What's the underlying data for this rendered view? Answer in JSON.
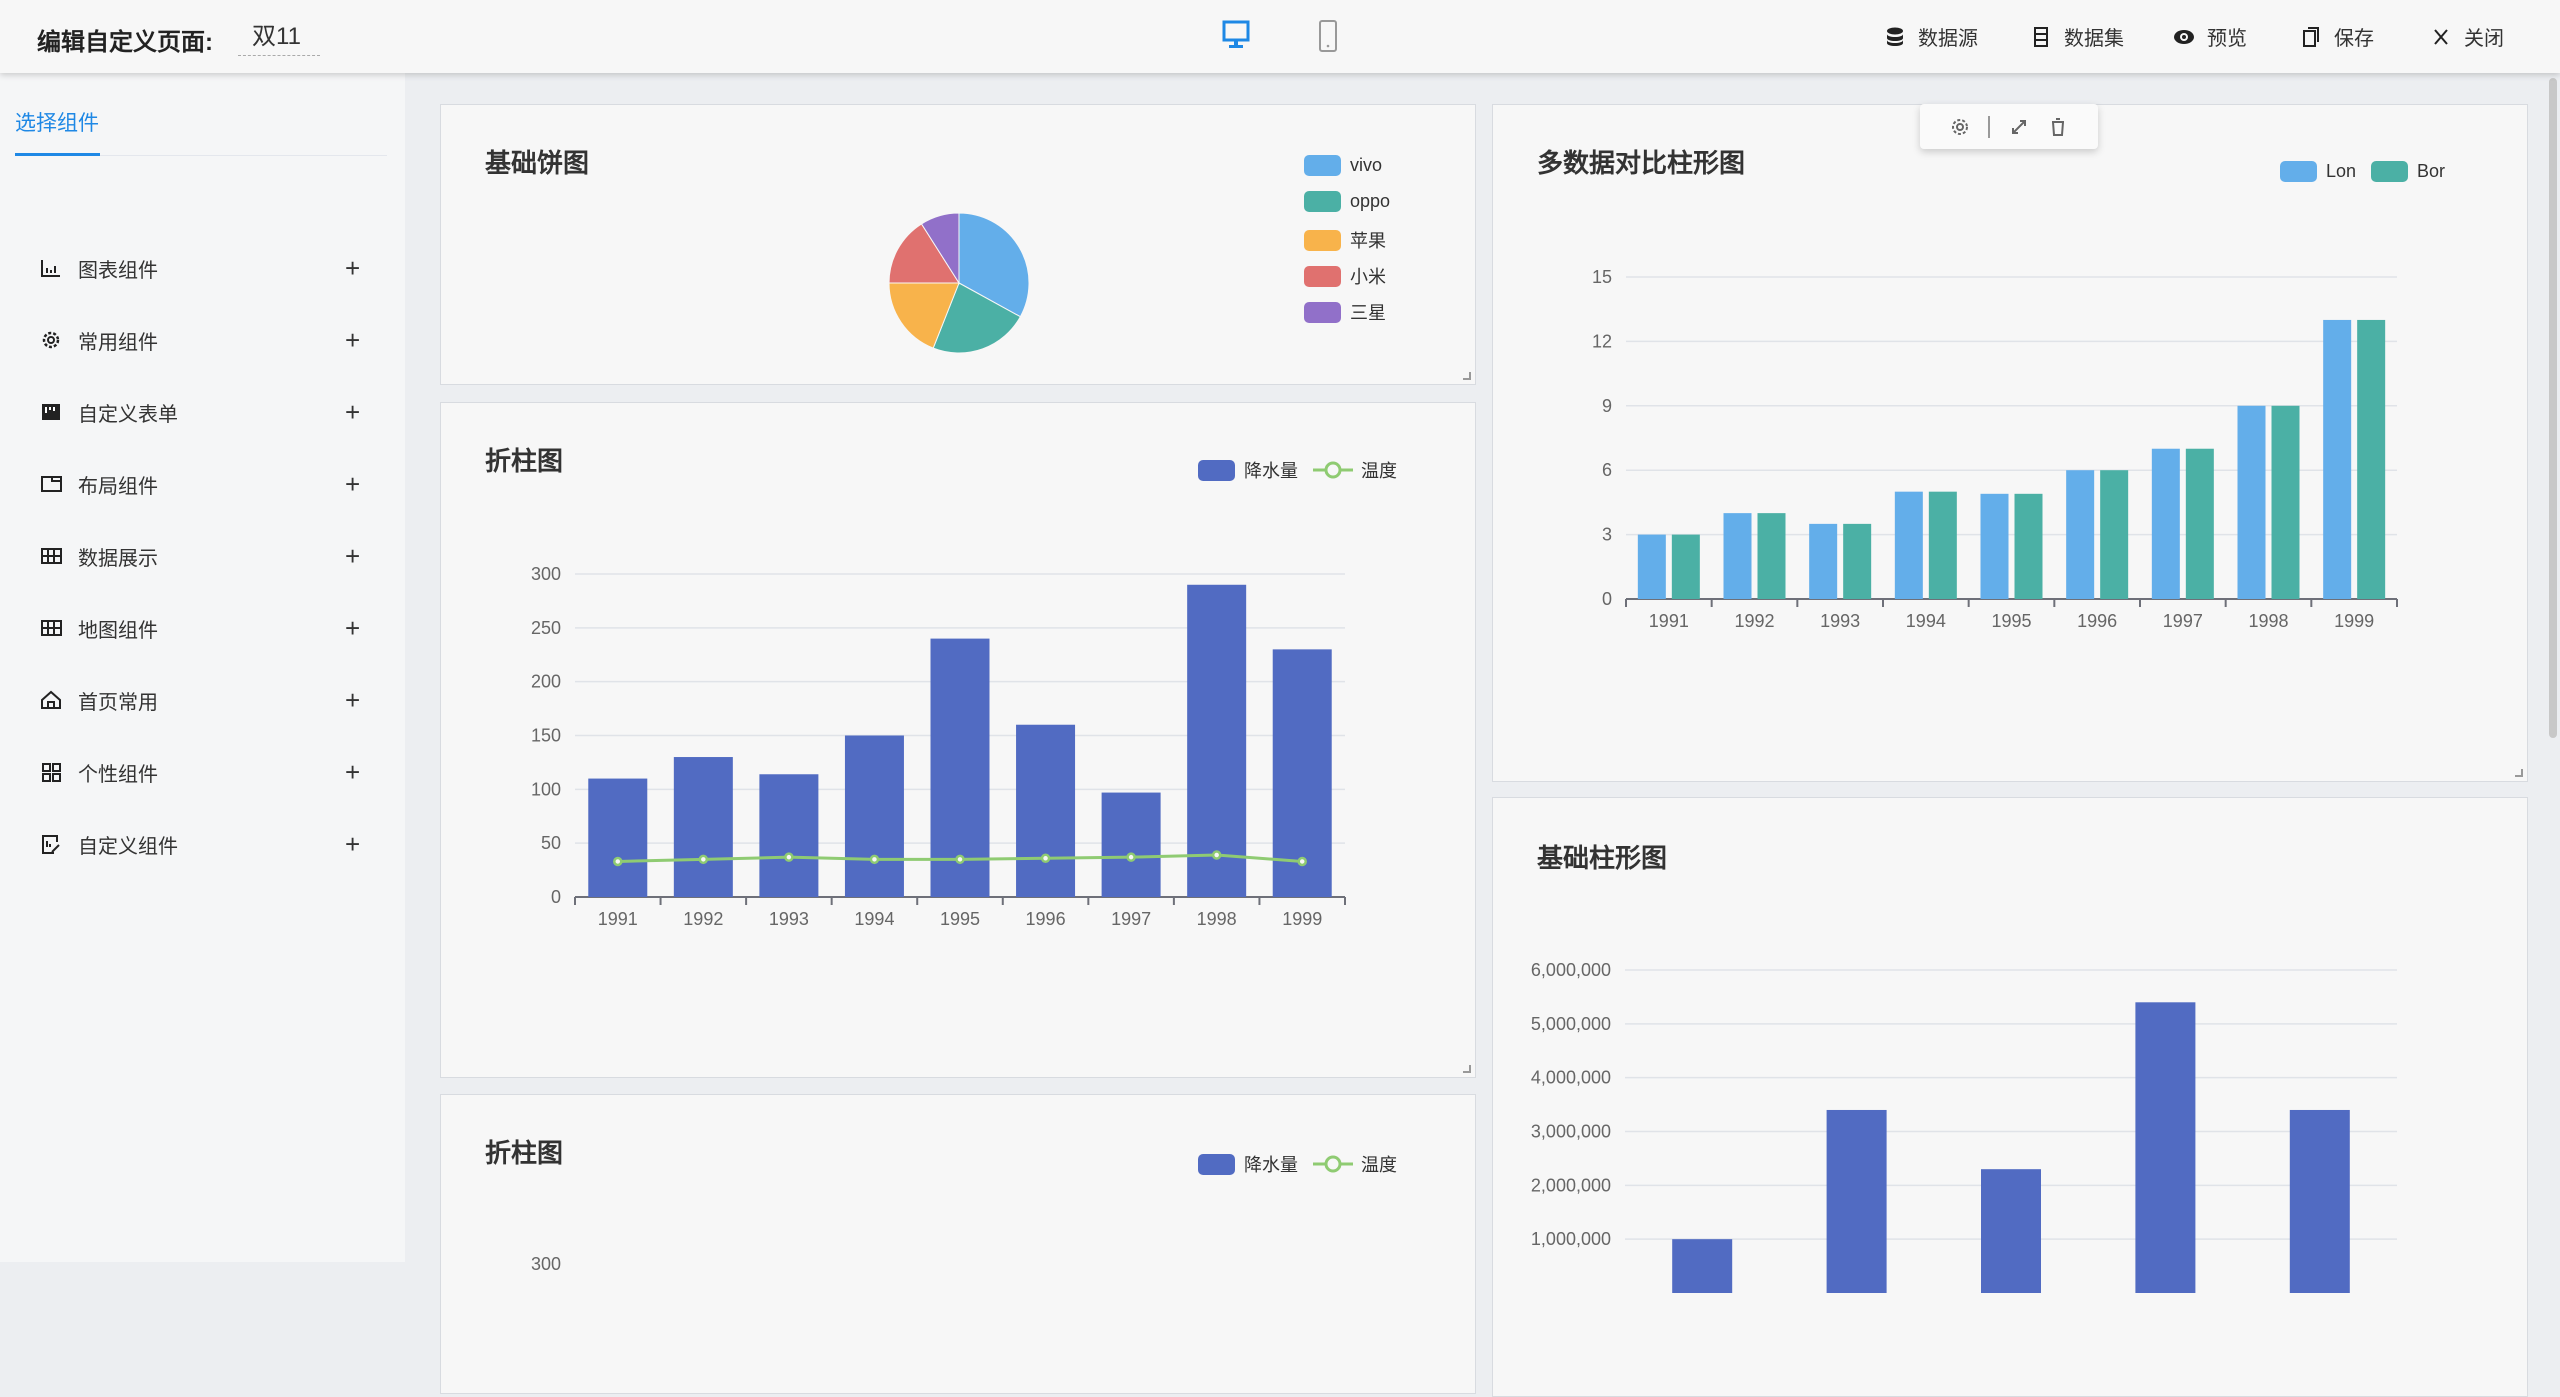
{
  "header": {
    "title": "编辑自定义页面:",
    "page_name": "双11",
    "devices": [
      {
        "name": "desktop",
        "active": true
      },
      {
        "name": "mobile",
        "active": false
      }
    ],
    "actions": [
      {
        "label": "数据源",
        "icon": "database-icon"
      },
      {
        "label": "数据集",
        "icon": "dataset-icon"
      },
      {
        "label": "预览",
        "icon": "eye-icon"
      },
      {
        "label": "保存",
        "icon": "copy-icon"
      },
      {
        "label": "关闭",
        "icon": "close-icon"
      }
    ]
  },
  "sidebar": {
    "tab": "选择组件",
    "items": [
      {
        "label": "图表组件",
        "icon": "bar-chart-icon"
      },
      {
        "label": "常用组件",
        "icon": "gear-icon"
      },
      {
        "label": "自定义表单",
        "icon": "form-icon"
      },
      {
        "label": "布局组件",
        "icon": "layout-icon"
      },
      {
        "label": "数据展示",
        "icon": "table-icon"
      },
      {
        "label": "地图组件",
        "icon": "table-icon"
      },
      {
        "label": "首页常用",
        "icon": "home-icon"
      },
      {
        "label": "个性组件",
        "icon": "grid-icon"
      },
      {
        "label": "自定义组件",
        "icon": "edit-icon"
      }
    ],
    "plus": "+"
  },
  "colors": {
    "accent": "#1e88e5",
    "bar": "#516bc2",
    "line": "#8fcb72",
    "lon": "#63aeea",
    "bor": "#4bb0a5"
  },
  "chart_data": [
    {
      "type": "pie",
      "title": "基础饼图",
      "legend_position": "top-right",
      "categories": [
        "vivo",
        "oppo",
        "苹果",
        "小米",
        "三星"
      ],
      "values": [
        33,
        23,
        19,
        16,
        9
      ],
      "colors": [
        "#63aeea",
        "#4bb0a5",
        "#f8b34b",
        "#e0716f",
        "#9170c9"
      ]
    },
    {
      "type": "bar+line",
      "title": "折柱图",
      "legend_position": "top-right",
      "categories": [
        "1991",
        "1992",
        "1993",
        "1994",
        "1995",
        "1996",
        "1997",
        "1998",
        "1999"
      ],
      "series": [
        {
          "name": "降水量",
          "type": "bar",
          "values": [
            110,
            130,
            114,
            150,
            240,
            160,
            97,
            290,
            230
          ]
        },
        {
          "name": "温度",
          "type": "line",
          "values": [
            33,
            35,
            37,
            35,
            35,
            36,
            37,
            39,
            33
          ]
        }
      ],
      "ylim": [
        0,
        300
      ],
      "yticks": [
        "0",
        "50",
        "100",
        "150",
        "200",
        "250",
        "300"
      ],
      "grid": true
    },
    {
      "type": "bar",
      "title": "多数据对比柱形图",
      "legend_position": "top-right",
      "categories": [
        "1991",
        "1992",
        "1993",
        "1994",
        "1995",
        "1996",
        "1997",
        "1998",
        "1999"
      ],
      "series": [
        {
          "name": "Lon",
          "values": [
            3,
            4,
            3.5,
            5,
            4.9,
            6,
            7,
            9,
            13
          ]
        },
        {
          "name": "Bor",
          "values": [
            3,
            4,
            3.5,
            5,
            4.9,
            6,
            7,
            9,
            13
          ]
        }
      ],
      "ylim": [
        0,
        15
      ],
      "yticks": [
        "0",
        "3",
        "6",
        "9",
        "12",
        "15"
      ],
      "grid": true
    },
    {
      "type": "bar",
      "title": "基础柱形图",
      "series": [
        {
          "values": [
            1000000,
            3400000,
            2300000,
            5400000,
            3400000
          ]
        }
      ],
      "ylim": [
        0,
        6000000
      ],
      "yticks": [
        "1,000,000",
        "2,000,000",
        "3,000,000",
        "4,000,000",
        "5,000,000",
        "6,000,000"
      ],
      "grid": true
    },
    {
      "type": "bar+line",
      "title": "折柱图",
      "legend_position": "top-right",
      "series": [
        {
          "name": "降水量"
        },
        {
          "name": "温度"
        }
      ],
      "yticks": [
        "300"
      ]
    }
  ]
}
